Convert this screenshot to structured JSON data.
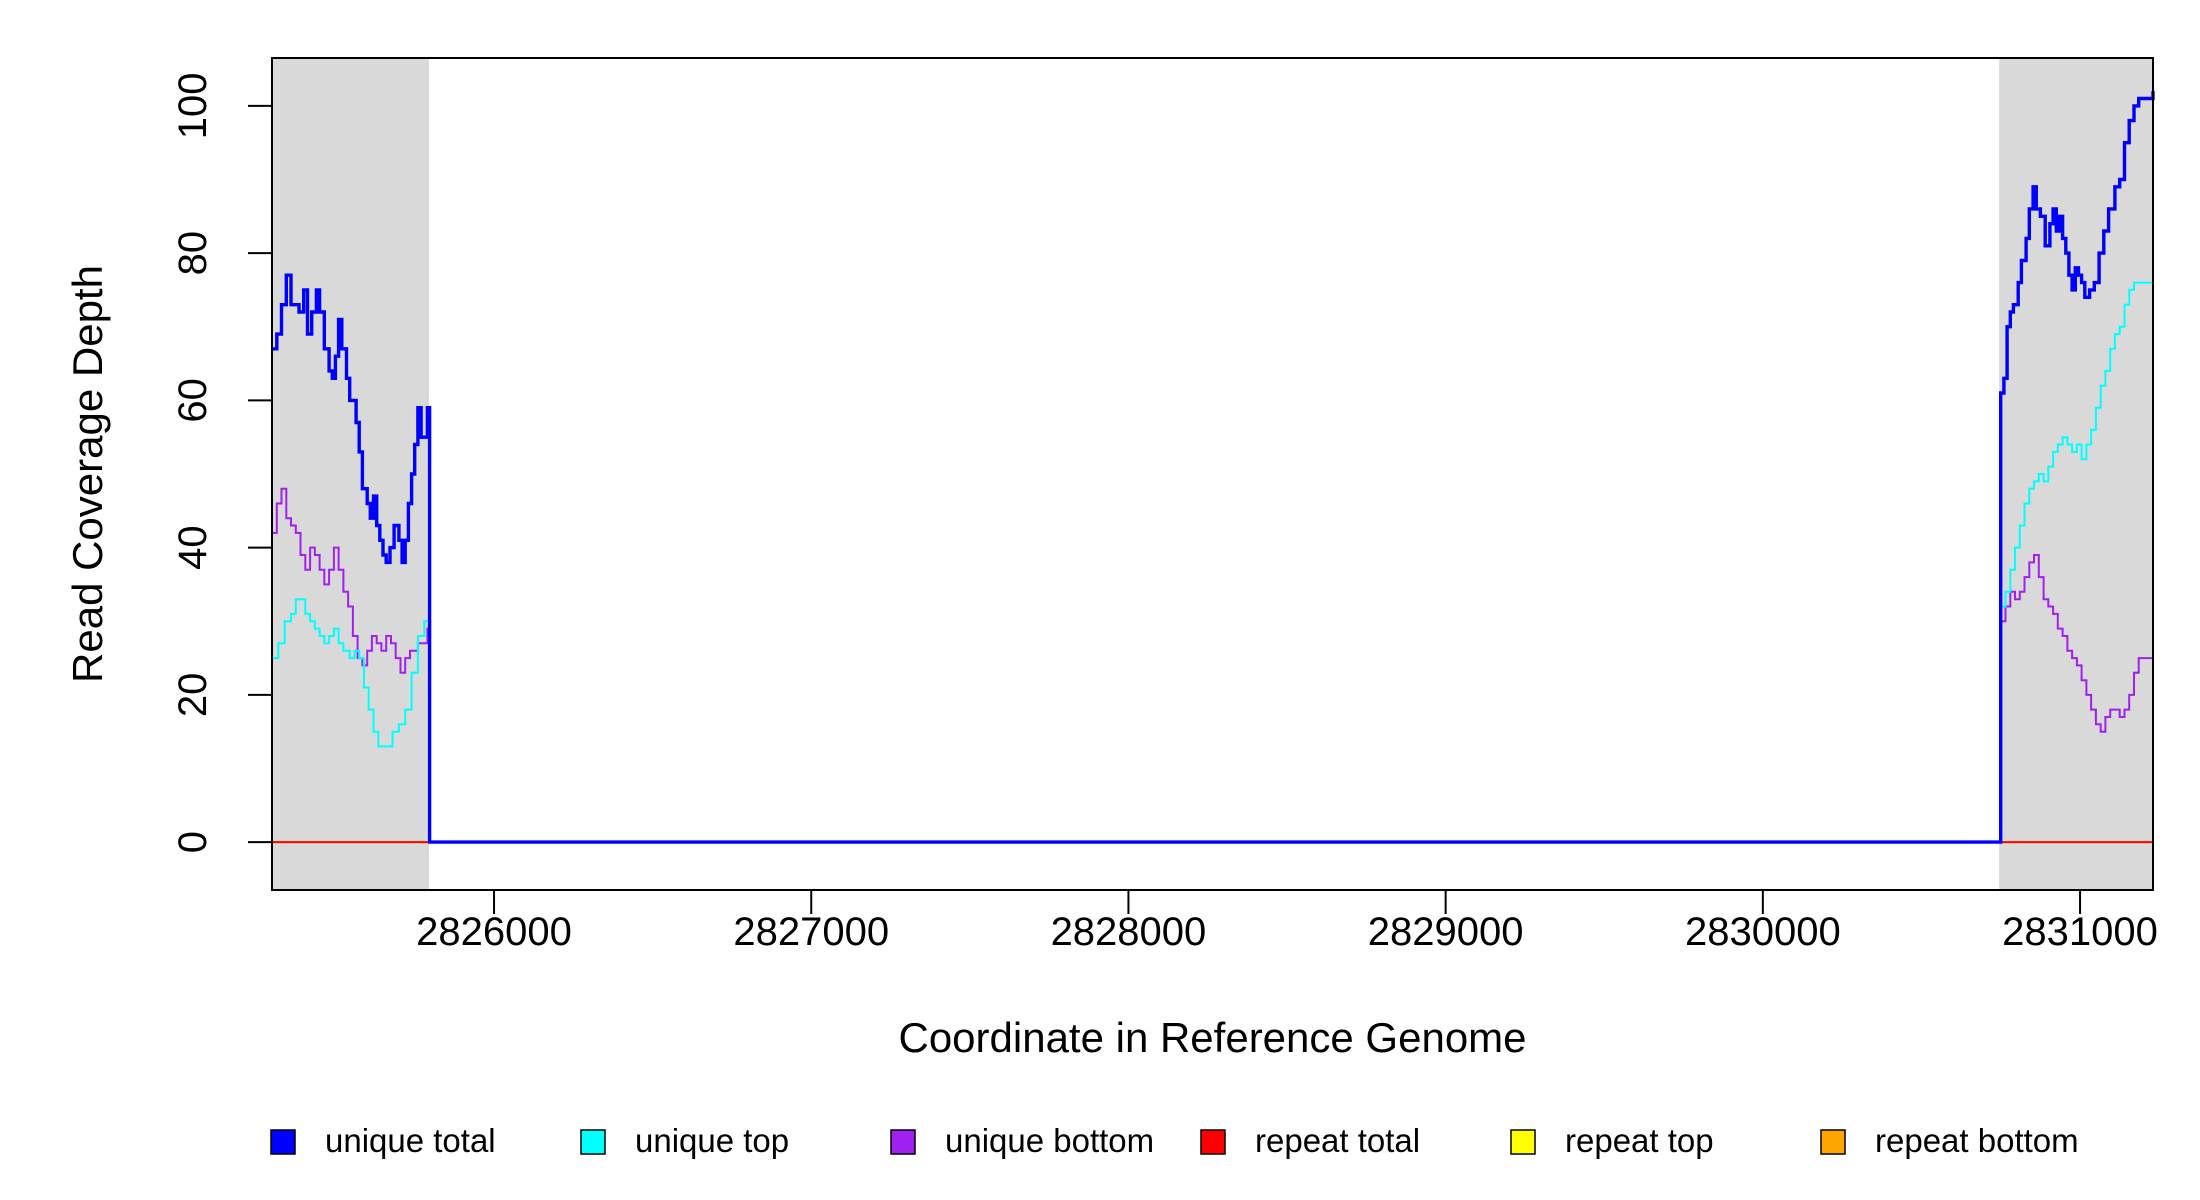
{
  "chart_data": {
    "type": "line",
    "xlabel": "Coordinate in Reference Genome",
    "ylabel": "Read Coverage Depth",
    "xlim": [
      2825300,
      2831230
    ],
    "ylim": [
      -6.5,
      106.5
    ],
    "x_ticks": [
      2826000,
      2827000,
      2828000,
      2829000,
      2830000,
      2831000
    ],
    "y_ticks": [
      0,
      20,
      40,
      60,
      80,
      100
    ],
    "shaded_regions": [
      [
        2825300,
        2825795
      ],
      [
        2830745,
        2831230
      ]
    ],
    "shaded_color": "#d9d9d9",
    "legend_position": "bottom",
    "series": [
      {
        "name": "unique total",
        "color": "#0000ff",
        "stroke": 3.4,
        "points": [
          [
            2825300,
            67
          ],
          [
            2825315,
            69
          ],
          [
            2825330,
            73
          ],
          [
            2825345,
            77
          ],
          [
            2825360,
            73
          ],
          [
            2825385,
            72
          ],
          [
            2825400,
            75
          ],
          [
            2825412,
            69
          ],
          [
            2825425,
            72
          ],
          [
            2825440,
            75
          ],
          [
            2825450,
            72
          ],
          [
            2825465,
            67
          ],
          [
            2825480,
            64
          ],
          [
            2825490,
            63
          ],
          [
            2825500,
            66
          ],
          [
            2825510,
            71
          ],
          [
            2825520,
            67
          ],
          [
            2825535,
            63
          ],
          [
            2825545,
            60
          ],
          [
            2825565,
            57
          ],
          [
            2825575,
            53
          ],
          [
            2825585,
            48
          ],
          [
            2825600,
            46
          ],
          [
            2825610,
            44
          ],
          [
            2825620,
            47
          ],
          [
            2825630,
            43
          ],
          [
            2825640,
            41
          ],
          [
            2825650,
            39
          ],
          [
            2825660,
            38
          ],
          [
            2825672,
            40
          ],
          [
            2825685,
            43
          ],
          [
            2825700,
            41
          ],
          [
            2825710,
            38
          ],
          [
            2825720,
            41
          ],
          [
            2825730,
            46
          ],
          [
            2825740,
            50
          ],
          [
            2825750,
            54
          ],
          [
            2825760,
            59
          ],
          [
            2825770,
            55
          ],
          [
            2825790,
            59
          ],
          [
            2825797,
            0
          ],
          [
            2830745,
            0
          ],
          [
            2830750,
            61
          ],
          [
            2830760,
            63
          ],
          [
            2830770,
            70
          ],
          [
            2830780,
            72
          ],
          [
            2830790,
            73
          ],
          [
            2830805,
            76
          ],
          [
            2830815,
            79
          ],
          [
            2830830,
            82
          ],
          [
            2830840,
            86
          ],
          [
            2830852,
            89
          ],
          [
            2830862,
            86
          ],
          [
            2830875,
            85
          ],
          [
            2830890,
            81
          ],
          [
            2830905,
            84
          ],
          [
            2830915,
            86
          ],
          [
            2830925,
            83
          ],
          [
            2830935,
            85
          ],
          [
            2830945,
            82
          ],
          [
            2830955,
            80
          ],
          [
            2830965,
            77
          ],
          [
            2830975,
            75
          ],
          [
            2830985,
            78
          ],
          [
            2830995,
            77
          ],
          [
            2831005,
            76
          ],
          [
            2831015,
            74
          ],
          [
            2831030,
            75
          ],
          [
            2831045,
            76
          ],
          [
            2831060,
            80
          ],
          [
            2831075,
            83
          ],
          [
            2831090,
            86
          ],
          [
            2831110,
            89
          ],
          [
            2831125,
            90
          ],
          [
            2831140,
            95
          ],
          [
            2831155,
            98
          ],
          [
            2831170,
            100
          ],
          [
            2831185,
            101
          ],
          [
            2831230,
            102
          ]
        ]
      },
      {
        "name": "unique top",
        "color": "#00ffff",
        "stroke": 2,
        "points": [
          [
            2825300,
            25
          ],
          [
            2825320,
            27
          ],
          [
            2825340,
            30
          ],
          [
            2825360,
            31
          ],
          [
            2825375,
            33
          ],
          [
            2825390,
            33
          ],
          [
            2825405,
            31
          ],
          [
            2825420,
            30
          ],
          [
            2825435,
            29
          ],
          [
            2825450,
            28
          ],
          [
            2825465,
            27
          ],
          [
            2825480,
            28
          ],
          [
            2825495,
            29
          ],
          [
            2825510,
            27
          ],
          [
            2825525,
            26
          ],
          [
            2825545,
            25
          ],
          [
            2825560,
            26
          ],
          [
            2825575,
            25
          ],
          [
            2825590,
            21
          ],
          [
            2825605,
            18
          ],
          [
            2825620,
            15
          ],
          [
            2825635,
            13
          ],
          [
            2825660,
            13
          ],
          [
            2825680,
            15
          ],
          [
            2825700,
            16
          ],
          [
            2825720,
            18
          ],
          [
            2825740,
            23
          ],
          [
            2825760,
            28
          ],
          [
            2825780,
            30
          ],
          [
            2825797,
            0
          ],
          [
            2830745,
            0
          ],
          [
            2830750,
            32
          ],
          [
            2830765,
            34
          ],
          [
            2830780,
            37
          ],
          [
            2830795,
            40
          ],
          [
            2830810,
            43
          ],
          [
            2830825,
            46
          ],
          [
            2830840,
            48
          ],
          [
            2830855,
            49
          ],
          [
            2830870,
            50
          ],
          [
            2830885,
            49
          ],
          [
            2830900,
            51
          ],
          [
            2830915,
            53
          ],
          [
            2830930,
            54
          ],
          [
            2830945,
            55
          ],
          [
            2830960,
            54
          ],
          [
            2830975,
            53
          ],
          [
            2830990,
            54
          ],
          [
            2831005,
            52
          ],
          [
            2831020,
            54
          ],
          [
            2831035,
            56
          ],
          [
            2831050,
            59
          ],
          [
            2831065,
            62
          ],
          [
            2831080,
            64
          ],
          [
            2831095,
            67
          ],
          [
            2831110,
            69
          ],
          [
            2831125,
            70
          ],
          [
            2831140,
            73
          ],
          [
            2831155,
            75
          ],
          [
            2831170,
            76
          ],
          [
            2831230,
            76
          ]
        ]
      },
      {
        "name": "unique bottom",
        "color": "#a020f0",
        "stroke": 2,
        "points": [
          [
            2825300,
            42
          ],
          [
            2825315,
            46
          ],
          [
            2825330,
            48
          ],
          [
            2825345,
            44
          ],
          [
            2825360,
            43
          ],
          [
            2825375,
            42
          ],
          [
            2825390,
            39
          ],
          [
            2825405,
            37
          ],
          [
            2825420,
            40
          ],
          [
            2825435,
            39
          ],
          [
            2825450,
            37
          ],
          [
            2825465,
            35
          ],
          [
            2825480,
            37
          ],
          [
            2825495,
            40
          ],
          [
            2825510,
            37
          ],
          [
            2825525,
            34
          ],
          [
            2825540,
            32
          ],
          [
            2825555,
            28
          ],
          [
            2825570,
            25
          ],
          [
            2825585,
            24
          ],
          [
            2825600,
            26
          ],
          [
            2825615,
            28
          ],
          [
            2825630,
            27
          ],
          [
            2825645,
            26
          ],
          [
            2825660,
            28
          ],
          [
            2825675,
            27
          ],
          [
            2825690,
            25
          ],
          [
            2825705,
            23
          ],
          [
            2825720,
            25
          ],
          [
            2825735,
            26
          ],
          [
            2825760,
            27
          ],
          [
            2825790,
            29
          ],
          [
            2825797,
            0
          ],
          [
            2830745,
            0
          ],
          [
            2830750,
            30
          ],
          [
            2830765,
            32
          ],
          [
            2830780,
            34
          ],
          [
            2830795,
            33
          ],
          [
            2830810,
            34
          ],
          [
            2830825,
            36
          ],
          [
            2830840,
            38
          ],
          [
            2830855,
            39
          ],
          [
            2830870,
            36
          ],
          [
            2830885,
            33
          ],
          [
            2830900,
            32
          ],
          [
            2830915,
            31
          ],
          [
            2830930,
            29
          ],
          [
            2830945,
            28
          ],
          [
            2830960,
            26
          ],
          [
            2830975,
            25
          ],
          [
            2830990,
            24
          ],
          [
            2831005,
            22
          ],
          [
            2831020,
            20
          ],
          [
            2831035,
            18
          ],
          [
            2831050,
            16
          ],
          [
            2831065,
            15
          ],
          [
            2831080,
            17
          ],
          [
            2831095,
            18
          ],
          [
            2831110,
            18
          ],
          [
            2831125,
            17
          ],
          [
            2831140,
            18
          ],
          [
            2831155,
            20
          ],
          [
            2831170,
            23
          ],
          [
            2831185,
            25
          ],
          [
            2831230,
            25
          ]
        ]
      },
      {
        "name": "repeat total",
        "color": "#ff0000",
        "stroke": 2,
        "points": [
          [
            2825300,
            0
          ],
          [
            2831230,
            0
          ]
        ]
      },
      {
        "name": "repeat top",
        "color": "#ffff00",
        "stroke": 2,
        "points": [
          [
            2825300,
            0
          ],
          [
            2831230,
            0
          ]
        ]
      },
      {
        "name": "repeat bottom",
        "color": "#ffa500",
        "stroke": 2,
        "points": [
          [
            2825300,
            0
          ],
          [
            2831230,
            0
          ]
        ]
      }
    ]
  }
}
